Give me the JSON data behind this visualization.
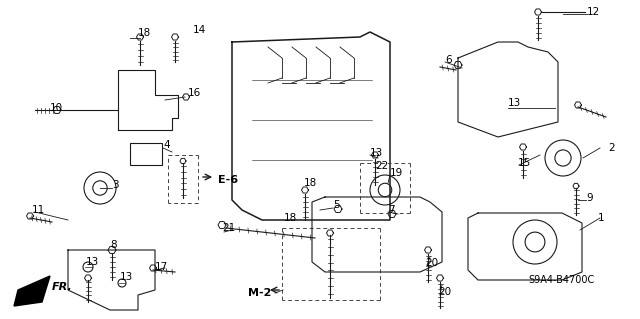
{
  "bg_color": "#ffffff",
  "line_color": "#1a1a1a",
  "label_color": "#000000",
  "label_fontsize": 7.5,
  "labels_draw": [
    [
      598,
      218,
      "1"
    ],
    [
      608,
      148,
      "2"
    ],
    [
      112,
      185,
      "3"
    ],
    [
      163,
      145,
      "4"
    ],
    [
      333,
      205,
      "5"
    ],
    [
      445,
      60,
      "6"
    ],
    [
      388,
      210,
      "7"
    ],
    [
      110,
      245,
      "8"
    ],
    [
      586,
      198,
      "9"
    ],
    [
      50,
      108,
      "10"
    ],
    [
      32,
      210,
      "11"
    ],
    [
      587,
      12,
      "12"
    ],
    [
      508,
      103,
      "13"
    ],
    [
      86,
      262,
      "13"
    ],
    [
      120,
      277,
      "13"
    ],
    [
      370,
      153,
      "13"
    ],
    [
      193,
      30,
      "14"
    ],
    [
      518,
      163,
      "15"
    ],
    [
      188,
      93,
      "16"
    ],
    [
      155,
      267,
      "17"
    ],
    [
      138,
      33,
      "18"
    ],
    [
      304,
      183,
      "18"
    ],
    [
      284,
      218,
      "18"
    ],
    [
      390,
      173,
      "19"
    ],
    [
      425,
      263,
      "20"
    ],
    [
      438,
      292,
      "20"
    ],
    [
      222,
      228,
      "21"
    ],
    [
      375,
      166,
      "22"
    ],
    [
      528,
      280,
      "S9A4-B4700C"
    ]
  ]
}
